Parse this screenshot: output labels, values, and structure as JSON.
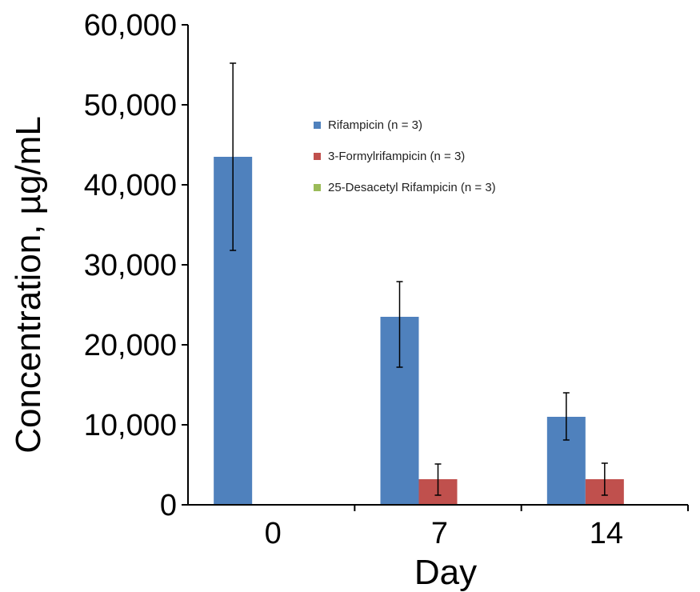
{
  "chart_data": {
    "type": "bar",
    "title": "",
    "xlabel": "Day",
    "ylabel": "Concentration, µg/mL",
    "categories": [
      "0",
      "7",
      "14"
    ],
    "ylim": [
      0,
      60000
    ],
    "yticks": [
      0,
      10000,
      20000,
      30000,
      40000,
      50000,
      60000
    ],
    "ytick_labels": [
      "0",
      "10,000",
      "20,000",
      "30,000",
      "40,000",
      "50,000",
      "60,000"
    ],
    "grid": false,
    "legend_position": "upper-center",
    "series": [
      {
        "name": "Rifampicin (n = 3)",
        "color": "#4f81bd",
        "values": [
          43500,
          23500,
          11000
        ],
        "error": [
          [
            31800,
            55200
          ],
          [
            17200,
            27900
          ],
          [
            8100,
            14000
          ]
        ]
      },
      {
        "name": "3-Formylrifampicin (n = 3)",
        "color": "#c0504d",
        "values": [
          0,
          3200,
          3200
        ],
        "error": [
          null,
          [
            1200,
            5100
          ],
          [
            1200,
            5200
          ]
        ]
      },
      {
        "name": "25-Desacetyl Rifampicin (n = 3)",
        "color": "#9bbb59",
        "values": [
          0,
          0,
          0
        ],
        "error": [
          null,
          null,
          null
        ]
      }
    ]
  }
}
